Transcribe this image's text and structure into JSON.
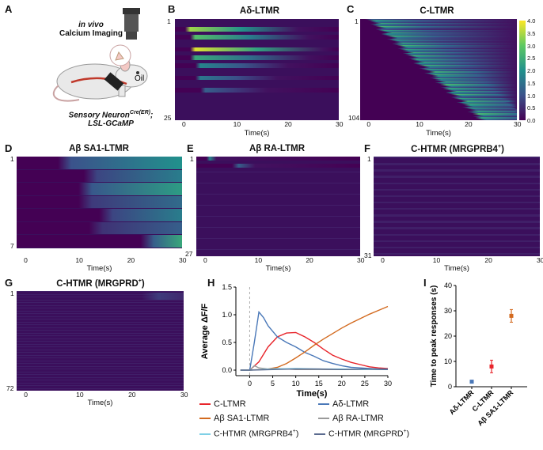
{
  "figure": {
    "panel_a": {
      "letter": "A",
      "line1": "in vivo",
      "line2": "Calcium Imaging",
      "oil": "Oil",
      "genotype1": "Sensory Neuron",
      "genotype1_sup": "Cre(ER)",
      "genotype1_end": ";",
      "genotype2": "LSL-GCaMP"
    },
    "colors": {
      "c_ltmr": "#e8252b",
      "ad_ltmr": "#4a78b8",
      "ab_sa1": "#d36a1f",
      "ab_ra": "#9a9a9a",
      "mrgprb4": "#7fd0e6",
      "mrgprd": "#5b6b8f",
      "heat_bg": "#3b0f5c"
    }
  },
  "chart_data": [
    {
      "type": "heatmap",
      "panel": "B",
      "title": "Aδ-LTMR",
      "xlabel": "Time(s)",
      "xticks": [
        0,
        10,
        20,
        30
      ],
      "xlim": [
        -2,
        30
      ],
      "ytick_top": "1",
      "ytick_bottom": "25",
      "n_rows": 25,
      "bright_rows": [
        {
          "row": 3,
          "start": 0,
          "end": 22,
          "peak": 0.85
        },
        {
          "row": 5,
          "start": 1,
          "end": 24,
          "peak": 0.7
        },
        {
          "row": 8,
          "start": 1,
          "end": 27,
          "peak": 0.95
        },
        {
          "row": 10,
          "start": 1,
          "end": 24,
          "peak": 0.6
        },
        {
          "row": 12,
          "start": 2,
          "end": 20,
          "peak": 0.45
        },
        {
          "row": 15,
          "start": 2,
          "end": 18,
          "peak": 0.4
        },
        {
          "row": 18,
          "start": 3,
          "end": 16,
          "peak": 0.3
        }
      ]
    },
    {
      "type": "heatmap",
      "panel": "C",
      "title": "C-LTMR",
      "xlabel": "Time(s)",
      "xticks": [
        0,
        10,
        20,
        30
      ],
      "xlim": [
        -2,
        30
      ],
      "ytick_top": "1",
      "ytick_bottom": "104",
      "n_rows": 104,
      "colorbar_ticks": [
        0.0,
        0.5,
        1.0,
        1.5,
        2.0,
        2.5,
        3.0,
        3.5,
        4.0
      ],
      "colorbar_range": [
        0,
        4
      ]
    },
    {
      "type": "heatmap",
      "panel": "D",
      "title": "Aβ SA1-LTMR",
      "xlabel": "Time(s)",
      "xticks": [
        0,
        10,
        20,
        30
      ],
      "xlim": [
        -2,
        30
      ],
      "ytick_top": "1",
      "ytick_bottom": "7",
      "n_rows": 7,
      "row_onsets": [
        6,
        11,
        10,
        10,
        14,
        12,
        22
      ]
    },
    {
      "type": "heatmap",
      "panel": "E",
      "title": "Aβ RA-LTMR",
      "xlabel": "Time(s)",
      "xticks": [
        0,
        10,
        20,
        30
      ],
      "xlim": [
        -2,
        30
      ],
      "ytick_top": "1",
      "ytick_bottom": "27",
      "n_rows": 27
    },
    {
      "type": "heatmap",
      "panel": "F",
      "title": "C-HTMR (MRGPRB4",
      "title_sup": "+",
      "title_end": ")",
      "xlabel": "Time(s)",
      "xticks": [
        0,
        10,
        20,
        30
      ],
      "xlim": [
        -2,
        30
      ],
      "ytick_top": "1",
      "ytick_bottom": "31",
      "n_rows": 31
    },
    {
      "type": "heatmap",
      "panel": "G",
      "title": "C-HTMR (MRGPRD",
      "title_sup": "+",
      "title_end": ")",
      "xlabel": "Time(s)",
      "xticks": [
        0,
        10,
        20,
        30
      ],
      "xlim": [
        -2,
        30
      ],
      "ytick_top": "1",
      "ytick_bottom": "72",
      "n_rows": 72
    },
    {
      "type": "line",
      "panel": "H",
      "title": "",
      "xlabel": "Time(s)",
      "ylabel": "Average ΔF/F",
      "xlim": [
        -3,
        30
      ],
      "ylim": [
        -0.1,
        1.5
      ],
      "xticks": [
        0,
        5,
        10,
        15,
        20,
        25,
        30
      ],
      "yticks": [
        0.0,
        0.5,
        1.0,
        1.5
      ],
      "stim_onset": 0,
      "series": [
        {
          "name": "C-LTMR",
          "key": "c_ltmr",
          "x": [
            -2,
            0,
            2,
            4,
            6,
            8,
            10,
            12,
            14,
            16,
            18,
            20,
            22,
            24,
            26,
            28,
            30
          ],
          "y": [
            0,
            0,
            0.15,
            0.42,
            0.6,
            0.67,
            0.68,
            0.6,
            0.5,
            0.38,
            0.27,
            0.2,
            0.14,
            0.1,
            0.06,
            0.04,
            0.03
          ]
        },
        {
          "name": "Aδ-LTMR",
          "key": "ad_ltmr",
          "x": [
            -2,
            0,
            1,
            2,
            3,
            4,
            6,
            8,
            10,
            12,
            14,
            16,
            18,
            20,
            22,
            24,
            26,
            28,
            30
          ],
          "y": [
            0,
            0,
            0.5,
            1.05,
            0.95,
            0.8,
            0.6,
            0.5,
            0.42,
            0.32,
            0.25,
            0.17,
            0.12,
            0.08,
            0.05,
            0.04,
            0.03,
            0.02,
            0.02
          ]
        },
        {
          "name": "Aβ SA1-LTMR",
          "key": "ab_sa1",
          "x": [
            -2,
            0,
            2,
            4,
            6,
            8,
            10,
            12,
            14,
            16,
            18,
            20,
            22,
            24,
            26,
            28,
            30
          ],
          "y": [
            0,
            0,
            0.01,
            0.02,
            0.05,
            0.12,
            0.22,
            0.33,
            0.45,
            0.56,
            0.66,
            0.76,
            0.85,
            0.93,
            1.01,
            1.08,
            1.15
          ]
        },
        {
          "name": "Aβ RA-LTMR",
          "key": "ab_ra",
          "x": [
            -2,
            0,
            1,
            2,
            4,
            6,
            8,
            10,
            15,
            20,
            25,
            30
          ],
          "y": [
            0,
            0,
            0.08,
            0.04,
            0.02,
            0.03,
            0.02,
            0.01,
            0.01,
            0.01,
            0.01,
            0.01
          ]
        },
        {
          "name": "C-HTMR (MRGPRB4+)",
          "key": "mrgprb4",
          "x": [
            -2,
            0,
            5,
            10,
            15,
            20,
            25,
            30
          ],
          "y": [
            0,
            0,
            0.02,
            0.03,
            0.02,
            0.02,
            0.01,
            0.01
          ]
        },
        {
          "name": "C-HTMR (MRGPRD+)",
          "key": "mrgprd",
          "x": [
            -2,
            0,
            5,
            10,
            15,
            20,
            25,
            30
          ],
          "y": [
            0,
            0,
            0.01,
            0.02,
            0.02,
            0.01,
            0.02,
            0.01
          ]
        }
      ]
    },
    {
      "type": "scatter",
      "panel": "I",
      "title": "",
      "xlabel": "",
      "ylabel": "Time to peak responses (s)",
      "ylim": [
        0,
        40
      ],
      "yticks": [
        0,
        10,
        20,
        30,
        40
      ],
      "categories": [
        "Aδ-LTMR",
        "C-LTMR",
        "Aβ SA1-LTMR"
      ],
      "values": [
        2,
        8,
        28
      ],
      "errors": [
        0.5,
        2.5,
        2.5
      ]
    }
  ],
  "legend": {
    "c_ltmr": "C-LTMR",
    "ad_ltmr": "Aδ-LTMR",
    "ab_sa1": "Aβ SA1-LTMR",
    "ab_ra": "Aβ RA-LTMR",
    "mrgprb4_pre": "C-HTMR (",
    "mrgprb4_mid": "MRGPRB4",
    "mrgprb4_sup": "+",
    "mrgprb4_end": ")",
    "mrgprd_pre": "C-HTMR (",
    "mrgprd_mid": "MRGPRD",
    "mrgprd_sup": "+",
    "mrgprd_end": ")"
  }
}
